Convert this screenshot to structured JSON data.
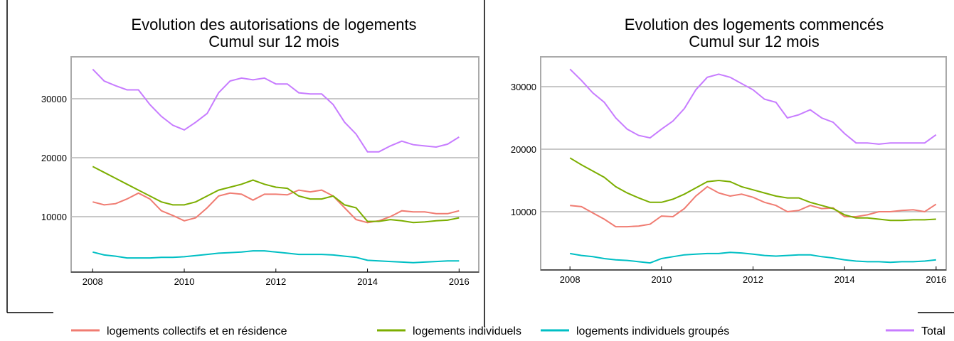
{
  "chart_data": [
    {
      "type": "line",
      "title": "Evolution des autorisations de logements",
      "subtitle": "Cumul sur 12 mois",
      "x": [
        2008,
        2008.25,
        2008.5,
        2008.75,
        2009,
        2009.25,
        2009.5,
        2009.75,
        2010,
        2010.25,
        2010.5,
        2010.75,
        2011,
        2011.25,
        2011.5,
        2011.75,
        2012,
        2012.25,
        2012.5,
        2012.75,
        2013,
        2013.25,
        2013.5,
        2013.75,
        2014,
        2014.25,
        2014.5,
        2014.75,
        2015,
        2015.25,
        2015.5,
        2015.75,
        2016
      ],
      "xlim": [
        2007.53,
        2016.43
      ],
      "xticks": [
        2008,
        2010,
        2012,
        2014,
        2016
      ],
      "ylim": [
        600,
        37100
      ],
      "yticks": [
        10000,
        20000,
        30000
      ],
      "grid": true,
      "series": [
        {
          "name": "logements collectifs et en résidence",
          "color": "#f07c72",
          "values": [
            12500,
            12000,
            12200,
            13000,
            14000,
            13000,
            11000,
            10200,
            9300,
            9800,
            11500,
            13500,
            14000,
            13800,
            12800,
            13800,
            13800,
            13700,
            14500,
            14200,
            14500,
            13500,
            11500,
            9500,
            9000,
            9300,
            10000,
            11000,
            10800,
            10800,
            10500,
            10500,
            11000
          ]
        },
        {
          "name": "logements individuels",
          "color": "#7cae00",
          "values": [
            18500,
            17500,
            16500,
            15500,
            14500,
            13500,
            12500,
            12000,
            12000,
            12500,
            13500,
            14500,
            15000,
            15500,
            16200,
            15500,
            15000,
            14800,
            13500,
            13000,
            13000,
            13500,
            12000,
            11500,
            9200,
            9200,
            9500,
            9300,
            9000,
            9100,
            9300,
            9400,
            9800
          ]
        },
        {
          "name": "logements individuels groupés",
          "color": "#00bfc4",
          "values": [
            4000,
            3500,
            3300,
            3000,
            3000,
            3000,
            3100,
            3100,
            3200,
            3400,
            3600,
            3800,
            3900,
            4000,
            4200,
            4200,
            4000,
            3800,
            3600,
            3600,
            3600,
            3500,
            3300,
            3100,
            2600,
            2500,
            2400,
            2300,
            2200,
            2300,
            2400,
            2500,
            2500
          ]
        },
        {
          "name": "Total",
          "color": "#c77cff",
          "values": [
            35000,
            33000,
            32200,
            31500,
            31500,
            29000,
            27000,
            25500,
            24700,
            26000,
            27500,
            31000,
            33000,
            33500,
            33200,
            33500,
            32500,
            32500,
            31000,
            30800,
            30800,
            29000,
            26000,
            24000,
            21000,
            21000,
            22000,
            22800,
            22200,
            22000,
            21800,
            22300,
            23500
          ]
        }
      ]
    },
    {
      "type": "line",
      "title": "Evolution des logements commencés",
      "subtitle": "Cumul sur 12 mois",
      "x": [
        2008,
        2008.25,
        2008.5,
        2008.75,
        2009,
        2009.25,
        2009.5,
        2009.75,
        2010,
        2010.25,
        2010.5,
        2010.75,
        2011,
        2011.25,
        2011.5,
        2011.75,
        2012,
        2012.25,
        2012.5,
        2012.75,
        2013,
        2013.25,
        2013.5,
        2013.75,
        2014,
        2014.25,
        2014.5,
        2014.75,
        2015,
        2015.25,
        2015.5,
        2015.75,
        2016
      ],
      "xlim": [
        2007.36,
        2016.22
      ],
      "xticks": [
        2008,
        2010,
        2012,
        2014,
        2016
      ],
      "ylim": [
        680,
        34770
      ],
      "yticks": [
        10000,
        20000,
        30000
      ],
      "grid": true,
      "series": [
        {
          "color": "#f07c72",
          "values": [
            11000,
            10800,
            9800,
            8800,
            7600,
            7600,
            7700,
            8000,
            9300,
            9200,
            10500,
            12500,
            14000,
            13000,
            12500,
            12800,
            12300,
            11500,
            11000,
            10000,
            10200,
            11000,
            10500,
            10600,
            9200,
            9200,
            9500,
            10000,
            10000,
            10200,
            10300,
            10000,
            11200
          ]
        },
        {
          "color": "#7cae00",
          "values": [
            18600,
            17500,
            16500,
            15500,
            14000,
            13000,
            12200,
            11500,
            11500,
            12000,
            12800,
            13800,
            14800,
            15000,
            14800,
            14000,
            13500,
            13000,
            12500,
            12200,
            12200,
            11500,
            11000,
            10500,
            9500,
            9000,
            9000,
            8800,
            8600,
            8600,
            8700,
            8700,
            8800
          ]
        },
        {
          "color": "#00bfc4",
          "values": [
            3300,
            3000,
            2800,
            2500,
            2300,
            2200,
            2000,
            1800,
            2500,
            2800,
            3100,
            3200,
            3300,
            3300,
            3500,
            3400,
            3200,
            3000,
            2900,
            3000,
            3100,
            3100,
            2800,
            2600,
            2300,
            2100,
            2000,
            2000,
            1900,
            2000,
            2000,
            2100,
            2300
          ]
        },
        {
          "color": "#c77cff",
          "values": [
            32800,
            31000,
            29000,
            27500,
            25000,
            23200,
            22200,
            21800,
            23200,
            24500,
            26500,
            29500,
            31500,
            32000,
            31500,
            30500,
            29500,
            28000,
            27500,
            25000,
            25500,
            26300,
            25000,
            24300,
            22500,
            21000,
            21000,
            20800,
            21000,
            21000,
            21000,
            21000,
            22300
          ]
        }
      ]
    }
  ]
}
